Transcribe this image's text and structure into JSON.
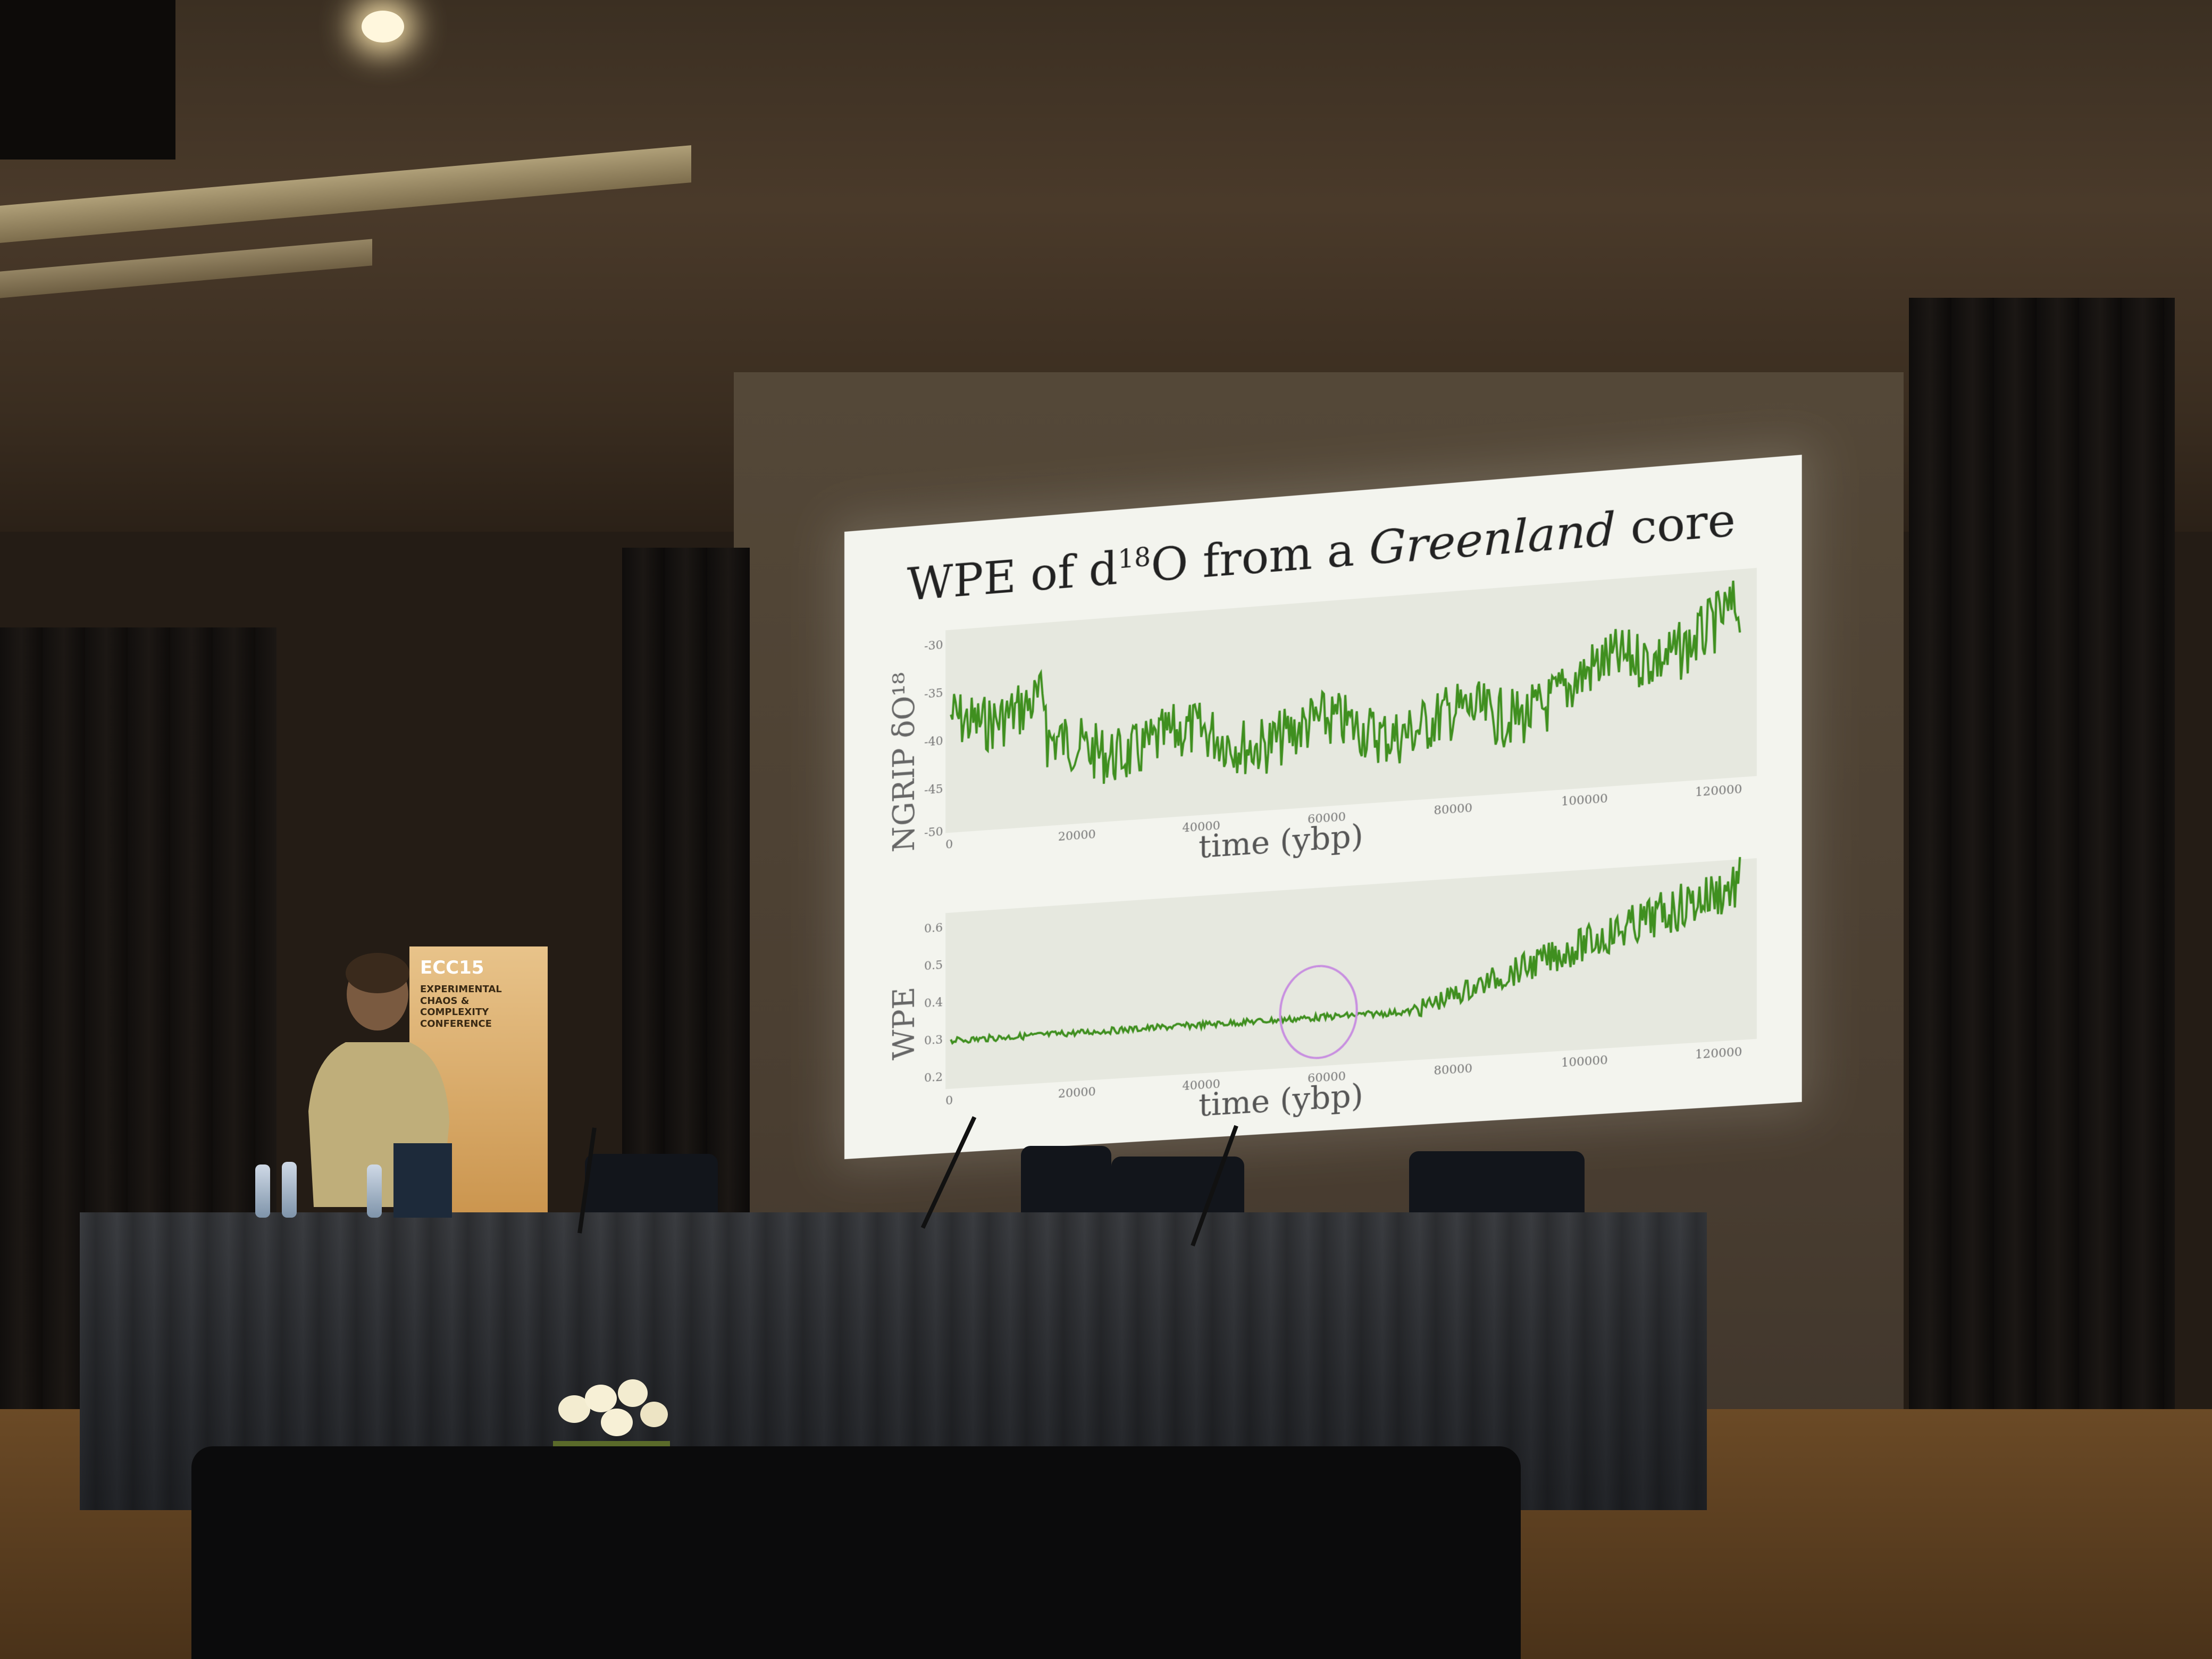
{
  "scene": {
    "slide": {
      "title_prefix": "WPE of d",
      "title_sup": "18",
      "title_mid": "O from a ",
      "title_italic": "Greenland",
      "title_suffix": " core"
    },
    "top_plot": {
      "ylabel": "NGRIP δO¹⁸",
      "xlabel": "time (ybp)",
      "xticks": [
        "0",
        "20000",
        "40000",
        "60000",
        "80000",
        "100000",
        "120000"
      ],
      "yticks": [
        "-30",
        "-35",
        "-40",
        "-45",
        "-50"
      ],
      "line_color": "#3f8f1f"
    },
    "bottom_plot": {
      "ylabel": "WPE",
      "xlabel": "time (ybp)",
      "xticks": [
        "0",
        "20000",
        "40000",
        "60000",
        "80000",
        "100000",
        "120000"
      ],
      "yticks": [
        "0.6",
        "0.5",
        "0.4",
        "0.3",
        "0.2"
      ],
      "line_color": "#3f8f1f",
      "highlight_color": "#c88fe0"
    },
    "banner": {
      "title": "ECC15",
      "subtitle": "EXPERIMENTAL CHAOS & COMPLEXITY CONFERENCE"
    }
  }
}
